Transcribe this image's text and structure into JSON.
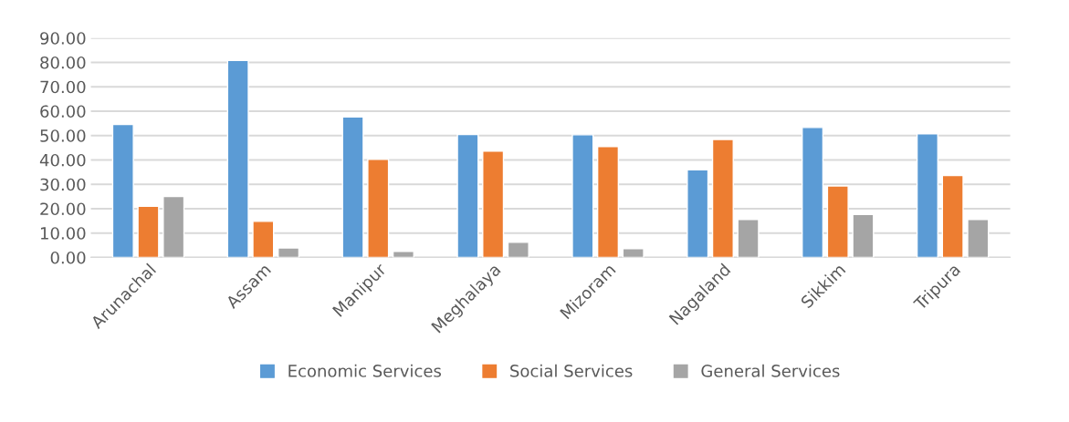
{
  "chart_data": {
    "type": "bar",
    "categories": [
      "Arunachal",
      "Assam",
      "Manipur",
      "Meghalaya",
      "Mizoram",
      "Nagaland",
      "Sikkim",
      "Tripura"
    ],
    "series": [
      {
        "name": "Economic Services",
        "color": "#5b9bd5",
        "values": [
          54.5,
          80.8,
          57.6,
          50.4,
          50.3,
          35.9,
          53.3,
          50.7
        ]
      },
      {
        "name": "Social Services",
        "color": "#ed7d31",
        "values": [
          21.0,
          14.8,
          40.2,
          43.6,
          45.5,
          48.4,
          29.3,
          33.6
        ]
      },
      {
        "name": "General Services",
        "color": "#a5a5a5",
        "values": [
          25.0,
          3.9,
          2.5,
          6.2,
          3.6,
          15.6,
          17.6,
          15.6
        ]
      }
    ],
    "ylim": [
      0,
      90
    ],
    "yticks": [
      {
        "value": 0,
        "label": "0.00"
      },
      {
        "value": 10,
        "label": "10.00"
      },
      {
        "value": 20,
        "label": "20.00"
      },
      {
        "value": 30,
        "label": "30.00"
      },
      {
        "value": 40,
        "label": "40.00"
      },
      {
        "value": 50,
        "label": "50.00"
      },
      {
        "value": 60,
        "label": "60.00"
      },
      {
        "value": 70,
        "label": "70.00"
      },
      {
        "value": 80,
        "label": "80.00"
      },
      {
        "value": 90,
        "label": "90.00"
      }
    ],
    "grid": "y",
    "legend": "bottom"
  }
}
